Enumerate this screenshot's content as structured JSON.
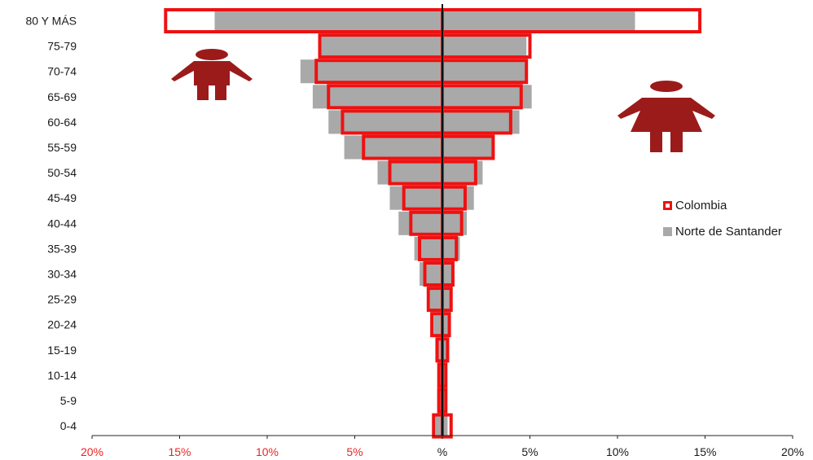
{
  "chart_data": {
    "type": "bar",
    "orientation": "horizontal-pyramid",
    "categories": [
      "0-4",
      "5-9",
      "10-14",
      "15-19",
      "20-24",
      "25-29",
      "30-34",
      "35-39",
      "40-44",
      "45-49",
      "50-54",
      "55-59",
      "60-64",
      "65-69",
      "70-74",
      "75-79",
      "80 Y MÁS"
    ],
    "series": [
      {
        "name": "Colombia",
        "style": "red-outline",
        "left": [
          0.5,
          0.2,
          0.2,
          0.3,
          0.6,
          0.8,
          1.0,
          1.3,
          1.8,
          2.2,
          3.0,
          4.5,
          5.7,
          6.5,
          7.2,
          7.0,
          15.8
        ],
        "right": [
          0.5,
          0.2,
          0.2,
          0.3,
          0.4,
          0.5,
          0.6,
          0.8,
          1.1,
          1.3,
          1.9,
          2.9,
          3.9,
          4.5,
          4.8,
          5.0,
          14.7
        ]
      },
      {
        "name": "Norte de Santander",
        "style": "gray-fill",
        "left": [
          0.4,
          0.3,
          0.2,
          0.4,
          0.5,
          0.7,
          1.3,
          1.6,
          2.5,
          3.0,
          3.7,
          5.6,
          6.5,
          7.4,
          8.1,
          7.0,
          13.0
        ],
        "right": [
          0.3,
          0.2,
          0.2,
          0.3,
          0.4,
          0.5,
          0.7,
          1.0,
          1.4,
          1.8,
          2.3,
          3.0,
          4.4,
          5.1,
          4.8,
          4.8,
          11.0
        ]
      }
    ],
    "xlim": [
      -20,
      20
    ],
    "xticks": [
      {
        "value": -20,
        "label": "20%"
      },
      {
        "value": -15,
        "label": "15%"
      },
      {
        "value": -10,
        "label": "10%"
      },
      {
        "value": -5,
        "label": "5%"
      },
      {
        "value": 0,
        "label": "%"
      },
      {
        "value": 5,
        "label": "5%"
      },
      {
        "value": 10,
        "label": "10%"
      },
      {
        "value": 15,
        "label": "15%"
      },
      {
        "value": 20,
        "label": "20%"
      }
    ],
    "colors": {
      "colombia": "#ee1111",
      "nds": "#a9a9a9",
      "tick_left": "#ee2222",
      "tick_right": "#1a1a1a",
      "icon": "#9b1b1b"
    },
    "icons": {
      "left": "male-icon",
      "right": "female-icon"
    },
    "legend": {
      "placement": "right",
      "items": [
        {
          "label": "Colombia",
          "swatch": "red-outline"
        },
        {
          "label": "Norte de Santander",
          "swatch": "gray-fill"
        }
      ]
    },
    "grid": false
  }
}
